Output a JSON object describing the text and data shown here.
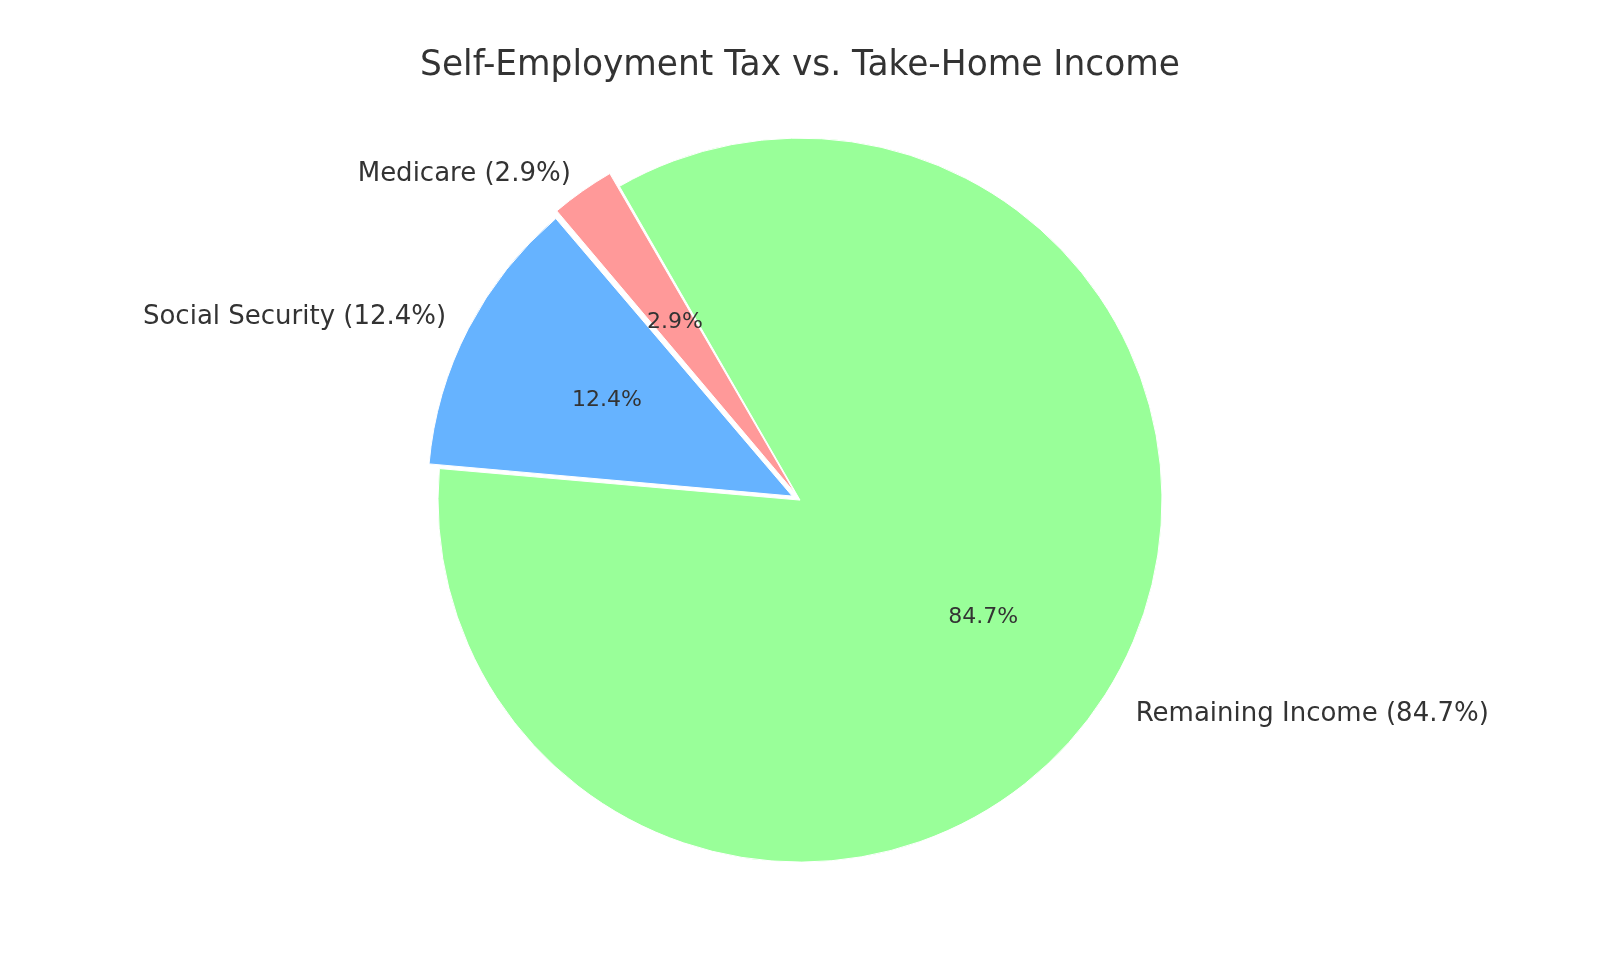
{
  "chart_data": {
    "type": "pie",
    "title": "Self-Employment Tax vs. Take-Home Income",
    "categories": [
      "Social Security (12.4%)",
      "Medicare (2.9%)",
      "Remaining Income (84.7%)"
    ],
    "values": [
      12.4,
      2.9,
      84.7
    ],
    "colors": [
      "#66b3ff",
      "#ff9999",
      "#99ff99"
    ],
    "value_labels": [
      "12.4%",
      "2.9%",
      "84.7%"
    ],
    "legend": false
  }
}
